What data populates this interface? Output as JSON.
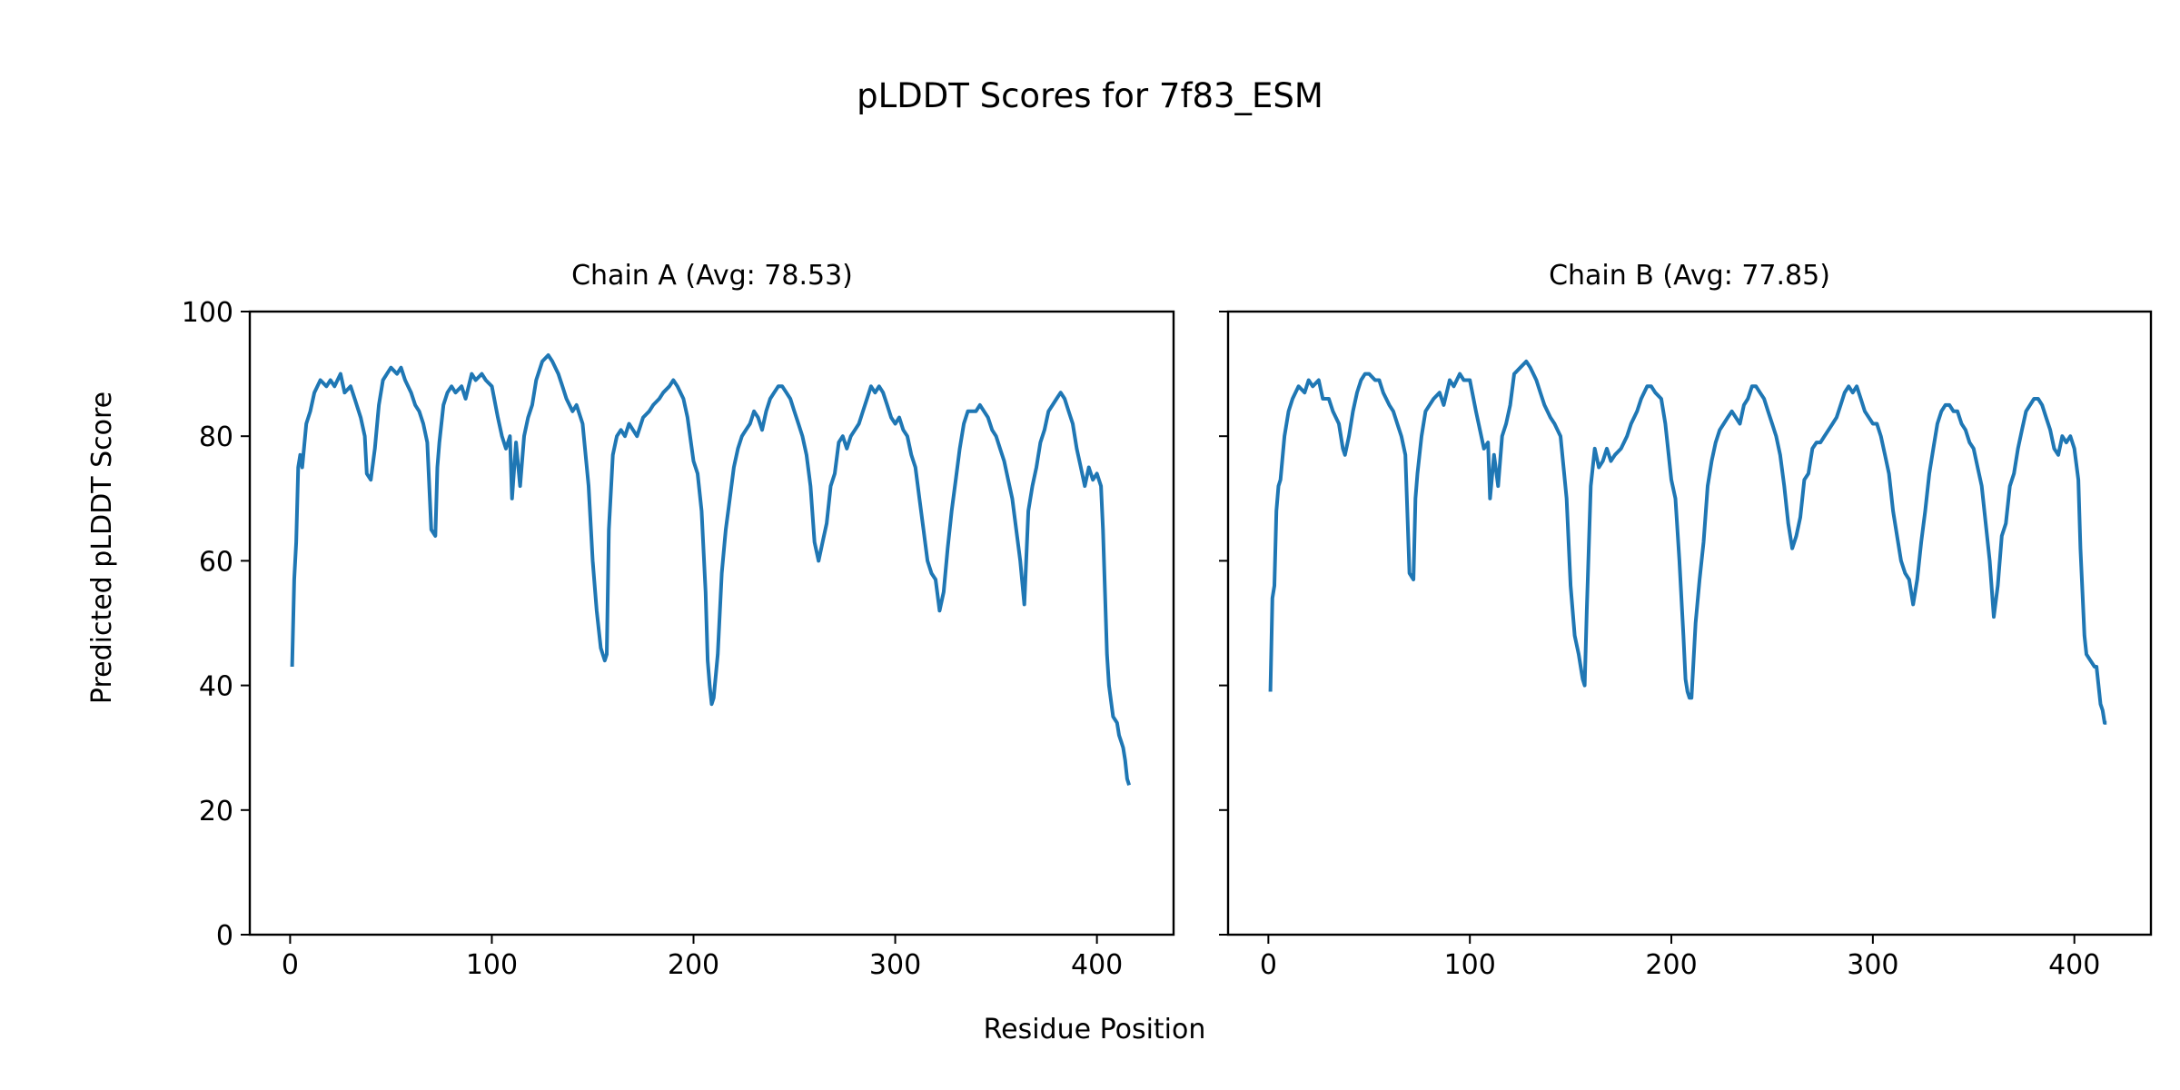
{
  "figure": {
    "title": "pLDDT Scores for 7f83_ESM",
    "xlabel": "Residue Position",
    "ylabel": "Predicted pLDDT Score"
  },
  "chart_data": [
    {
      "type": "line",
      "title": "Chain A (Avg: 78.53)",
      "xlabel": "Residue Position",
      "ylabel": "Predicted pLDDT Score",
      "xlim": [
        -20,
        438
      ],
      "ylim": [
        0,
        100
      ],
      "xticks": [
        0,
        100,
        200,
        300,
        400
      ],
      "yticks": [
        0,
        20,
        40,
        60,
        80,
        100
      ],
      "line_color": "#1f77b4",
      "series": [
        {
          "x": [
            1,
            2,
            3,
            4,
            5,
            6,
            8,
            10,
            12,
            15,
            18,
            20,
            22,
            25,
            27,
            30,
            32,
            35,
            37,
            38,
            40,
            42,
            44,
            46,
            48,
            50,
            53,
            55,
            57,
            60,
            62,
            64,
            66,
            68,
            70,
            72,
            73,
            74,
            76,
            78,
            80,
            82,
            85,
            87,
            90,
            92,
            95,
            97,
            100,
            103,
            105,
            107,
            109,
            110,
            112,
            114,
            116,
            118,
            120,
            122,
            125,
            128,
            130,
            133,
            135,
            137,
            140,
            142,
            145,
            148,
            150,
            152,
            154,
            156,
            157,
            158,
            160,
            162,
            164,
            166,
            168,
            170,
            172,
            175,
            178,
            180,
            183,
            185,
            188,
            190,
            192,
            195,
            197,
            200,
            202,
            204,
            206,
            207,
            208,
            209,
            210,
            212,
            214,
            216,
            218,
            220,
            222,
            224,
            226,
            228,
            230,
            232,
            234,
            236,
            238,
            240,
            242,
            244,
            246,
            248,
            250,
            252,
            254,
            256,
            258,
            260,
            262,
            264,
            266,
            268,
            270,
            272,
            274,
            276,
            278,
            280,
            282,
            284,
            286,
            288,
            290,
            292,
            294,
            296,
            298,
            300,
            302,
            304,
            306,
            308,
            310,
            312,
            314,
            316,
            318,
            320,
            322,
            324,
            326,
            328,
            330,
            332,
            334,
            336,
            338,
            340,
            342,
            344,
            346,
            348,
            350,
            352,
            354,
            356,
            358,
            360,
            362,
            364,
            366,
            368,
            370,
            372,
            374,
            376,
            378,
            380,
            382,
            384,
            386,
            388,
            390,
            392,
            394,
            396,
            398,
            400,
            402,
            403,
            404,
            405,
            406,
            408,
            410,
            411,
            412,
            413,
            414,
            415,
            416
          ],
          "y": [
            43,
            57,
            63,
            75,
            77,
            75,
            82,
            84,
            87,
            89,
            88,
            89,
            88,
            90,
            87,
            88,
            86,
            83,
            80,
            74,
            73,
            78,
            85,
            89,
            90,
            91,
            90,
            91,
            89,
            87,
            85,
            84,
            82,
            79,
            65,
            64,
            75,
            79,
            85,
            87,
            88,
            87,
            88,
            86,
            90,
            89,
            90,
            89,
            88,
            83,
            80,
            78,
            80,
            70,
            79,
            72,
            80,
            83,
            85,
            89,
            92,
            93,
            92,
            90,
            88,
            86,
            84,
            85,
            82,
            72,
            60,
            52,
            46,
            44,
            45,
            65,
            77,
            80,
            81,
            80,
            82,
            81,
            80,
            83,
            84,
            85,
            86,
            87,
            88,
            89,
            88,
            86,
            83,
            76,
            74,
            68,
            55,
            44,
            40,
            37,
            38,
            45,
            58,
            65,
            70,
            75,
            78,
            80,
            81,
            82,
            84,
            83,
            81,
            84,
            86,
            87,
            88,
            88,
            87,
            86,
            84,
            82,
            80,
            77,
            72,
            63,
            60,
            63,
            66,
            72,
            74,
            79,
            80,
            78,
            80,
            81,
            82,
            84,
            86,
            88,
            87,
            88,
            87,
            85,
            83,
            82,
            83,
            81,
            80,
            77,
            75,
            70,
            65,
            60,
            58,
            57,
            52,
            55,
            62,
            68,
            73,
            78,
            82,
            84,
            84,
            84,
            85,
            84,
            83,
            81,
            80,
            78,
            76,
            73,
            70,
            65,
            60,
            53,
            68,
            72,
            75,
            79,
            81,
            84,
            85,
            86,
            87,
            86,
            84,
            82,
            78,
            75,
            72,
            75,
            73,
            74,
            72,
            65,
            55,
            45,
            40,
            35,
            34,
            32,
            31,
            30,
            28,
            25,
            24
          ]
        }
      ]
    },
    {
      "type": "line",
      "title": "Chain B (Avg: 77.85)",
      "xlabel": "Residue Position",
      "ylabel": "",
      "xlim": [
        -20,
        438
      ],
      "ylim": [
        0,
        100
      ],
      "xticks": [
        0,
        100,
        200,
        300,
        400
      ],
      "yticks": [
        0,
        20,
        40,
        60,
        80,
        100
      ],
      "line_color": "#1f77b4",
      "series": [
        {
          "x": [
            1,
            2,
            3,
            4,
            5,
            6,
            8,
            10,
            12,
            15,
            18,
            20,
            22,
            25,
            27,
            30,
            32,
            35,
            37,
            38,
            40,
            42,
            44,
            46,
            48,
            50,
            53,
            55,
            57,
            60,
            62,
            64,
            66,
            68,
            70,
            72,
            73,
            74,
            76,
            78,
            80,
            82,
            85,
            87,
            90,
            92,
            95,
            97,
            100,
            103,
            105,
            107,
            109,
            110,
            112,
            114,
            116,
            118,
            120,
            122,
            125,
            128,
            130,
            133,
            135,
            137,
            140,
            142,
            145,
            148,
            150,
            152,
            154,
            156,
            157,
            158,
            160,
            162,
            164,
            166,
            168,
            170,
            172,
            175,
            178,
            180,
            183,
            185,
            188,
            190,
            192,
            195,
            197,
            200,
            202,
            204,
            206,
            207,
            208,
            209,
            210,
            212,
            214,
            216,
            218,
            220,
            222,
            224,
            226,
            228,
            230,
            232,
            234,
            236,
            238,
            240,
            242,
            244,
            246,
            248,
            250,
            252,
            254,
            256,
            258,
            260,
            262,
            264,
            266,
            268,
            270,
            272,
            274,
            276,
            278,
            280,
            282,
            284,
            286,
            288,
            290,
            292,
            294,
            296,
            298,
            300,
            302,
            304,
            306,
            308,
            310,
            312,
            314,
            316,
            318,
            320,
            322,
            324,
            326,
            328,
            330,
            332,
            334,
            336,
            338,
            340,
            342,
            344,
            346,
            348,
            350,
            352,
            354,
            356,
            358,
            360,
            362,
            364,
            366,
            368,
            370,
            372,
            374,
            376,
            378,
            380,
            382,
            384,
            386,
            388,
            390,
            392,
            394,
            396,
            398,
            400,
            402,
            403,
            404,
            405,
            406,
            408,
            410,
            411,
            412,
            413,
            414,
            415,
            416
          ],
          "y": [
            39,
            54,
            56,
            68,
            72,
            73,
            80,
            84,
            86,
            88,
            87,
            89,
            88,
            89,
            86,
            86,
            84,
            82,
            78,
            77,
            80,
            84,
            87,
            89,
            90,
            90,
            89,
            89,
            87,
            85,
            84,
            82,
            80,
            77,
            58,
            57,
            70,
            74,
            80,
            84,
            85,
            86,
            87,
            85,
            89,
            88,
            90,
            89,
            89,
            84,
            81,
            78,
            79,
            70,
            77,
            72,
            80,
            82,
            85,
            90,
            91,
            92,
            91,
            89,
            87,
            85,
            83,
            82,
            80,
            70,
            56,
            48,
            45,
            41,
            40,
            52,
            72,
            78,
            75,
            76,
            78,
            76,
            77,
            78,
            80,
            82,
            84,
            86,
            88,
            88,
            87,
            86,
            82,
            73,
            70,
            60,
            48,
            41,
            39,
            38,
            38,
            50,
            57,
            63,
            72,
            76,
            79,
            81,
            82,
            83,
            84,
            83,
            82,
            85,
            86,
            88,
            88,
            87,
            86,
            84,
            82,
            80,
            77,
            72,
            66,
            62,
            64,
            67,
            73,
            74,
            78,
            79,
            79,
            80,
            81,
            82,
            83,
            85,
            87,
            88,
            87,
            88,
            86,
            84,
            83,
            82,
            82,
            80,
            77,
            74,
            68,
            64,
            60,
            58,
            57,
            53,
            57,
            63,
            68,
            74,
            78,
            82,
            84,
            85,
            85,
            84,
            84,
            82,
            81,
            79,
            78,
            75,
            72,
            66,
            60,
            51,
            56,
            64,
            66,
            72,
            74,
            78,
            81,
            84,
            85,
            86,
            86,
            85,
            83,
            81,
            78,
            77,
            80,
            79,
            80,
            78,
            73,
            62,
            55,
            48,
            45,
            44,
            43,
            43,
            40,
            37,
            36,
            34,
            34
          ]
        }
      ]
    }
  ]
}
